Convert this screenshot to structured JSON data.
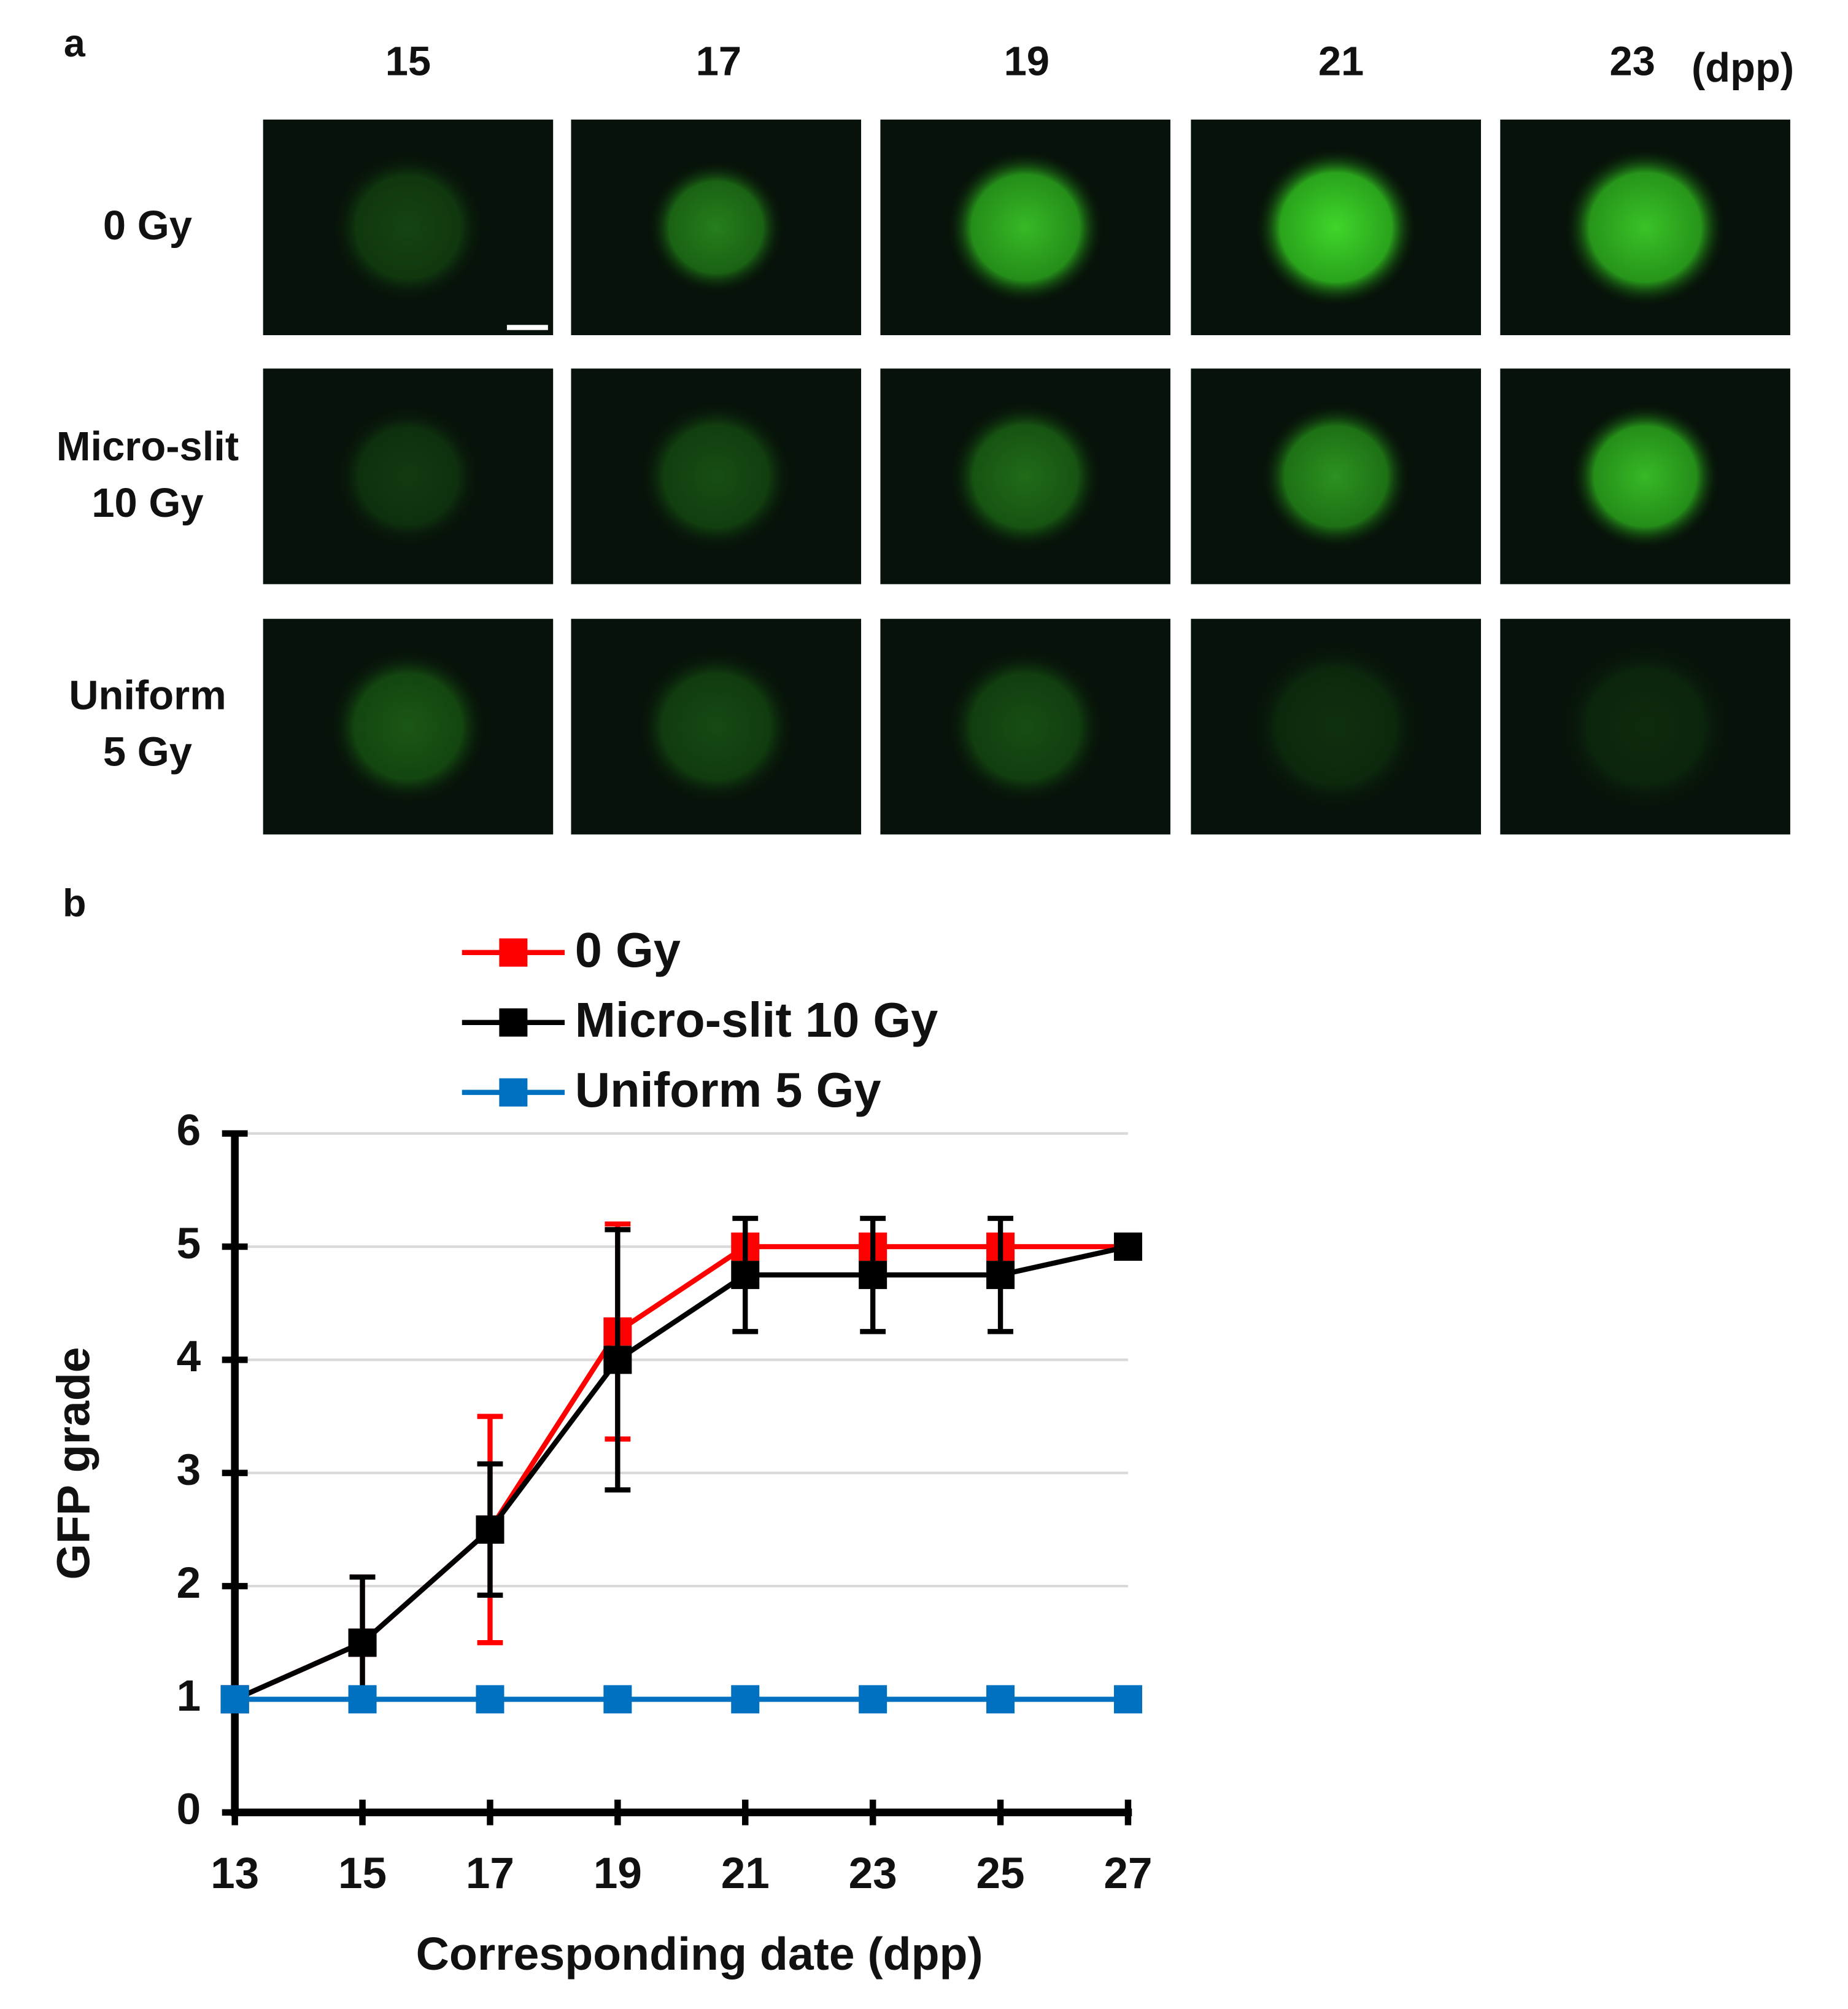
{
  "panel_a": {
    "label": "a",
    "column_labels": [
      "15",
      "17",
      "19",
      "21",
      "23"
    ],
    "column_unit": "(dpp)",
    "row_labels": [
      [
        "0 Gy"
      ],
      [
        "Micro-slit",
        "10 Gy"
      ],
      [
        "Uniform",
        "5 Gy"
      ]
    ]
  },
  "panel_b": {
    "label": "b"
  },
  "chart_data": {
    "type": "line",
    "xlabel": "Corresponding  date (dpp)",
    "ylabel": "GFP grade",
    "x": [
      13,
      15,
      17,
      19,
      21,
      23,
      25,
      27
    ],
    "xlim": [
      13,
      27
    ],
    "xticks": [
      13,
      15,
      17,
      19,
      21,
      23,
      25,
      27
    ],
    "ylim": [
      0,
      6
    ],
    "yticks": [
      0,
      1,
      2,
      3,
      4,
      5,
      6
    ],
    "grid": true,
    "legend": "top",
    "series": [
      {
        "name": "0 Gy",
        "color": "#ff0000",
        "values": [
          1,
          1.5,
          2.5,
          4.25,
          5,
          5,
          5,
          5
        ],
        "errors": [
          0,
          0.58,
          1.0,
          0.95,
          0,
          0,
          0,
          0
        ]
      },
      {
        "name": "Micro-slit 10 Gy",
        "color": "#000000",
        "values": [
          1,
          1.5,
          2.5,
          4,
          4.75,
          4.75,
          4.75,
          5
        ],
        "errors": [
          0,
          0.58,
          0.58,
          1.15,
          0.5,
          0.5,
          0.5,
          0
        ]
      },
      {
        "name": "Uniform 5 Gy",
        "color": "#0070c0",
        "values": [
          1,
          1,
          1,
          1,
          1,
          1,
          1,
          1
        ],
        "errors": [
          0,
          0,
          0,
          0,
          0,
          0,
          0,
          0
        ]
      }
    ]
  }
}
